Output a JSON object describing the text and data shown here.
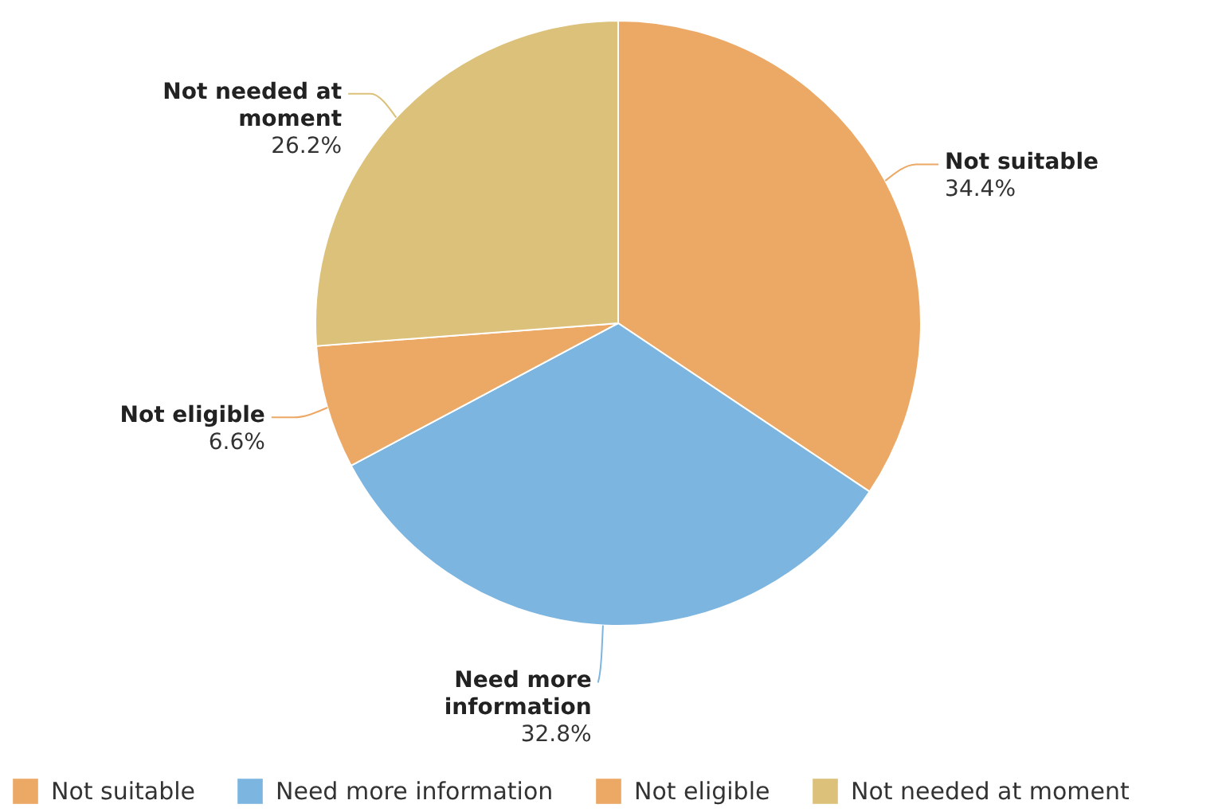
{
  "chart_data": {
    "type": "pie",
    "categories": [
      "Not suitable",
      "Need more information",
      "Not eligible",
      "Not needed at moment"
    ],
    "values": [
      34.4,
      32.8,
      6.6,
      26.2
    ],
    "colors": [
      "#eca865",
      "#7cb5e0",
      "#eca865",
      "#dcc17a"
    ],
    "value_labels": [
      "34.4%",
      "32.8%",
      "6.6%",
      "26.2%"
    ],
    "legend": "bottom"
  }
}
